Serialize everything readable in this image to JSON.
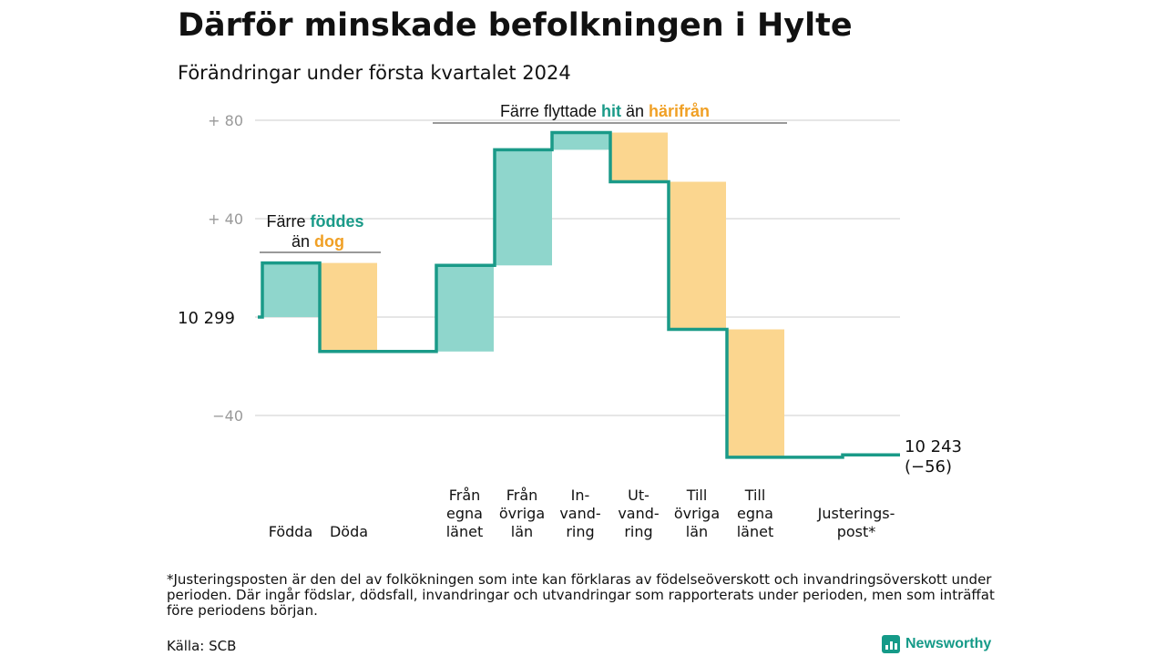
{
  "title": "Därför minskade befolkningen i Hylte",
  "subtitle": "Förändringar under första kvartalet 2024",
  "colors": {
    "teal": "#1a9a88",
    "teal_fill": "#8fd6cc",
    "orange_fill": "#fbd68f",
    "orange_text": "#f0a025",
    "grid": "#dddddd",
    "tick": "#999999"
  },
  "chart_data": {
    "type": "waterfall",
    "start_value": 10299,
    "start_label": "10  299",
    "end_label": "10 243",
    "end_change": "(−56)",
    "ylim": [
      -60,
      80
    ],
    "yticks": [
      {
        "value": 80,
        "label": "+  80"
      },
      {
        "value": 40,
        "label": "+  40"
      },
      {
        "value": -40,
        "label": "−40"
      }
    ],
    "steps": [
      {
        "key": "fodda",
        "label_lines": [
          "Födda"
        ],
        "from": 0,
        "to": 22,
        "kind": "in"
      },
      {
        "key": "doda",
        "label_lines": [
          "Döda"
        ],
        "from": 22,
        "to": -14,
        "kind": "out"
      },
      {
        "key": "fran-egna-lanet",
        "label_lines": [
          "Från",
          "egna",
          "länet"
        ],
        "from": -14,
        "to": 21,
        "kind": "in"
      },
      {
        "key": "fran-ovriga-lan",
        "label_lines": [
          "Från",
          "övriga",
          "län"
        ],
        "from": 21,
        "to": 68,
        "kind": "in"
      },
      {
        "key": "invandring",
        "label_lines": [
          "In-",
          "vand-",
          "ring"
        ],
        "from": 68,
        "to": 75,
        "kind": "in"
      },
      {
        "key": "utvandring",
        "label_lines": [
          "Ut-",
          "vand-",
          "ring"
        ],
        "from": 75,
        "to": 55,
        "kind": "out"
      },
      {
        "key": "till-ovriga-lan",
        "label_lines": [
          "Till",
          "övriga",
          "län"
        ],
        "from": 55,
        "to": -5,
        "kind": "out"
      },
      {
        "key": "till-egna-lanet",
        "label_lines": [
          "Till",
          "egna",
          "länet"
        ],
        "from": -5,
        "to": -57,
        "kind": "out"
      },
      {
        "key": "justeringspost",
        "label_lines": [
          "Justerings-",
          "post*"
        ],
        "from": -57,
        "to": -56,
        "kind": "adjust"
      }
    ],
    "annotations": {
      "births": {
        "line1_a": "Färre",
        "line1_b": "föddes",
        "line2_a": "än",
        "line2_b": "dog"
      },
      "migration": {
        "a": "Färre flyttade",
        "b": "hit",
        "c": "än",
        "d": "härifrån"
      }
    }
  },
  "footnote": "*Justeringsposten är den del av folkökningen som inte kan förklaras av födelseöverskott och invandringsöverskott under perioden. Där ingår födslar, dödsfall, invandringar och utvandringar som rapporterats under perioden, men som inträffat före periodens början.",
  "source": "Källa: SCB",
  "brand": "Newsworthy"
}
